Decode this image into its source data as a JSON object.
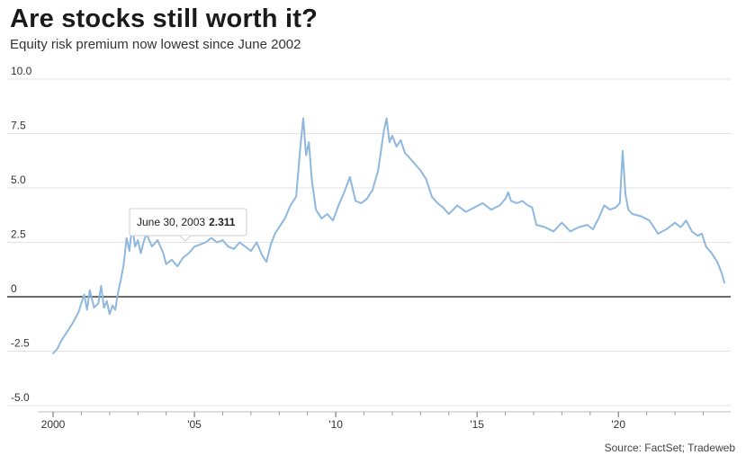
{
  "header": {
    "title": "Are stocks still worth it?",
    "subtitle": "Equity risk premium now lowest since June 2002"
  },
  "source": "Source: FactSet; Tradeweb",
  "colors": {
    "line": "#8fb8df",
    "zero_line": "#111111",
    "grid": "#e3e3e3"
  },
  "tooltip": {
    "date": "June 30, 2003",
    "value": "2.311",
    "x": 2003.5,
    "y": 2.311
  },
  "chart_data": {
    "type": "line",
    "title": "Are stocks still worth it?",
    "subtitle": "Equity risk premium now lowest since June 2002",
    "xlabel": "",
    "ylabel": "",
    "xlim": [
      2000,
      2023.75
    ],
    "ylim": [
      -5.0,
      10.0
    ],
    "x_ticks": [
      {
        "x": 2000,
        "label": "2000"
      },
      {
        "x": 2005,
        "label": "'05"
      },
      {
        "x": 2010,
        "label": "'10"
      },
      {
        "x": 2015,
        "label": "'15"
      },
      {
        "x": 2020,
        "label": "'20"
      }
    ],
    "x_minor_ticks": [
      2001,
      2002,
      2003,
      2004,
      2006,
      2007,
      2008,
      2009,
      2011,
      2012,
      2013,
      2014,
      2016,
      2017,
      2018,
      2019,
      2021,
      2022,
      2023
    ],
    "y_ticks": [
      {
        "y": 10,
        "label": "10.0"
      },
      {
        "y": 7.5,
        "label": "7.5"
      },
      {
        "y": 5,
        "label": "5.0"
      },
      {
        "y": 2.5,
        "label": "2.5"
      },
      {
        "y": 0,
        "label": "0"
      },
      {
        "y": -2.5,
        "label": "-2.5"
      },
      {
        "y": -5,
        "label": "-5.0"
      }
    ],
    "grid": true,
    "series": [
      {
        "x": [
          2000.0,
          2000.15,
          2000.3,
          2000.5,
          2000.7,
          2000.9,
          2001.0,
          2001.1,
          2001.2,
          2001.3,
          2001.45,
          2001.6,
          2001.7,
          2001.8,
          2001.9,
          2002.0,
          2002.1,
          2002.2,
          2002.3,
          2002.4,
          2002.5,
          2002.6,
          2002.7,
          2002.8,
          2002.9,
          2003.0,
          2003.1,
          2003.2,
          2003.3,
          2003.5,
          2003.7,
          2003.9,
          2004.0,
          2004.2,
          2004.4,
          2004.6,
          2004.8,
          2005.0,
          2005.2,
          2005.4,
          2005.6,
          2005.8,
          2006.0,
          2006.2,
          2006.4,
          2006.6,
          2006.8,
          2007.0,
          2007.2,
          2007.4,
          2007.55,
          2007.7,
          2007.85,
          2008.0,
          2008.2,
          2008.4,
          2008.6,
          2008.75,
          2008.85,
          2008.95,
          2009.05,
          2009.15,
          2009.3,
          2009.5,
          2009.7,
          2009.9,
          2010.1,
          2010.3,
          2010.5,
          2010.7,
          2010.9,
          2011.1,
          2011.3,
          2011.5,
          2011.7,
          2011.8,
          2011.9,
          2012.0,
          2012.15,
          2012.3,
          2012.45,
          2012.6,
          2012.8,
          2013.0,
          2013.2,
          2013.4,
          2013.6,
          2013.8,
          2014.0,
          2014.3,
          2014.6,
          2014.9,
          2015.2,
          2015.5,
          2015.8,
          2016.0,
          2016.1,
          2016.2,
          2016.4,
          2016.6,
          2016.8,
          2016.95,
          2017.1,
          2017.4,
          2017.7,
          2018.0,
          2018.3,
          2018.6,
          2018.9,
          2019.1,
          2019.3,
          2019.5,
          2019.7,
          2019.9,
          2020.05,
          2020.15,
          2020.25,
          2020.35,
          2020.5,
          2020.8,
          2021.1,
          2021.4,
          2021.7,
          2022.0,
          2022.2,
          2022.4,
          2022.6,
          2022.8,
          2022.95,
          2023.1,
          2023.3,
          2023.5,
          2023.65,
          2023.75
        ],
        "y": [
          -2.6,
          -2.4,
          -2.0,
          -1.6,
          -1.2,
          -0.7,
          -0.3,
          0.1,
          -0.6,
          0.3,
          -0.5,
          -0.3,
          0.5,
          -0.5,
          -0.2,
          -0.8,
          -0.4,
          -0.6,
          0.2,
          0.8,
          1.5,
          2.7,
          2.1,
          3.3,
          2.3,
          2.6,
          2.0,
          2.5,
          2.9,
          2.31,
          2.6,
          2.0,
          1.5,
          1.7,
          1.4,
          1.8,
          2.0,
          2.3,
          2.4,
          2.5,
          2.7,
          2.5,
          2.6,
          2.3,
          2.2,
          2.5,
          2.3,
          2.1,
          2.5,
          1.9,
          1.6,
          2.4,
          2.9,
          3.2,
          3.6,
          4.2,
          4.6,
          6.9,
          8.2,
          6.5,
          7.1,
          5.4,
          4.0,
          3.6,
          3.8,
          3.5,
          4.2,
          4.8,
          5.5,
          4.4,
          4.3,
          4.5,
          4.9,
          5.8,
          7.6,
          8.2,
          7.1,
          7.4,
          6.9,
          7.2,
          6.6,
          6.4,
          6.1,
          5.8,
          5.4,
          4.6,
          4.3,
          4.1,
          3.8,
          4.2,
          3.9,
          4.1,
          4.3,
          4.0,
          4.2,
          4.5,
          4.8,
          4.4,
          4.3,
          4.4,
          4.2,
          4.1,
          3.3,
          3.2,
          3.0,
          3.4,
          3.0,
          3.2,
          3.3,
          3.1,
          3.6,
          4.2,
          4.0,
          4.1,
          4.3,
          6.7,
          4.7,
          4.0,
          3.8,
          3.7,
          3.5,
          2.9,
          3.1,
          3.4,
          3.2,
          3.5,
          3.0,
          2.8,
          2.9,
          2.3,
          2.0,
          1.6,
          1.1,
          0.65
        ]
      }
    ]
  }
}
